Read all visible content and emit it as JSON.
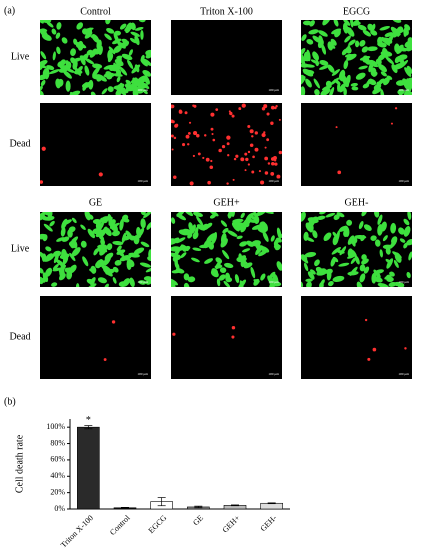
{
  "panel_a": {
    "label": "(a)",
    "columns_top": [
      "Control",
      "Triton X-100",
      "EGCG"
    ],
    "columns_bottom": [
      "GE",
      "GEH+",
      "GEH-"
    ],
    "rows": [
      "Live",
      "Dead"
    ],
    "scale_bar": "100 μm"
  },
  "chart_data": {
    "type": "bar",
    "panel_label": "(b)",
    "y_label": "Cell death rate",
    "categories": [
      "Triton X-100",
      "Control",
      "EGCG",
      "GE",
      "GEH+",
      "GEH-"
    ],
    "values": [
      100,
      1.5,
      9,
      2.5,
      4.5,
      7
    ],
    "errors": [
      2,
      0.5,
      5,
      1,
      0.5,
      0.5
    ],
    "colors": [
      "#2a2a2a",
      "#111111",
      "#ffffff",
      "#888888",
      "#bbbbbb",
      "#dddddd"
    ],
    "annotation": "*",
    "ylim": [
      0,
      110
    ],
    "yticks": [
      {
        "value": 0,
        "label": "0%"
      },
      {
        "value": 20,
        "label": "20%"
      },
      {
        "value": 40,
        "label": "40%"
      },
      {
        "value": 60,
        "label": "60%"
      },
      {
        "value": 80,
        "label": "80%"
      },
      {
        "value": 100,
        "label": "100%"
      }
    ]
  }
}
